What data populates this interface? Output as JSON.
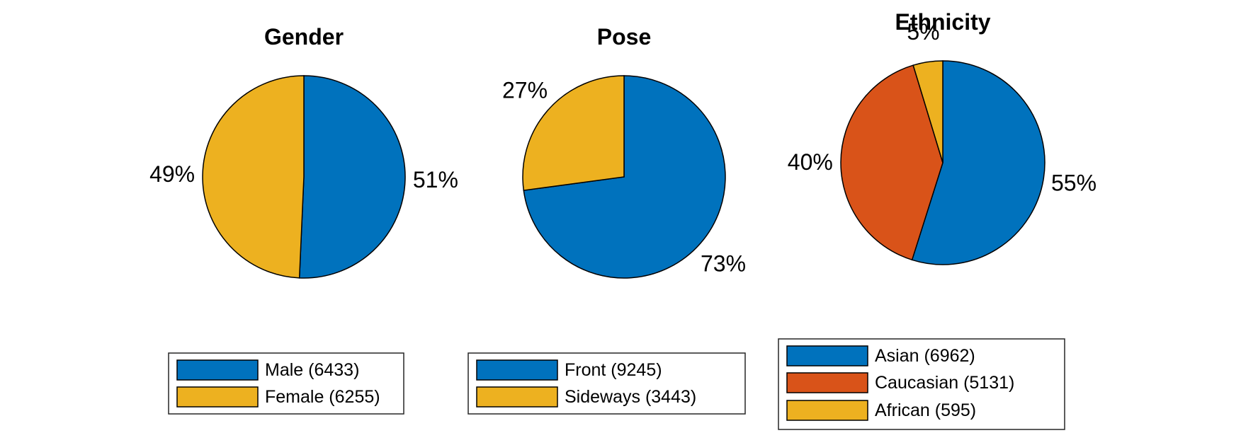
{
  "chart_data": [
    {
      "type": "pie",
      "title": "Gender",
      "categories": [
        "Male",
        "Female"
      ],
      "values": [
        6433,
        6255
      ],
      "percent_labels": [
        "51%",
        "49%"
      ],
      "legend_labels": [
        "Male (6433)",
        "Female (6255)"
      ],
      "colors": [
        "#0072BD",
        "#EDB120"
      ],
      "legend_placement": "below"
    },
    {
      "type": "pie",
      "title": "Pose",
      "categories": [
        "Front",
        "Sideways"
      ],
      "values": [
        9245,
        3443
      ],
      "percent_labels": [
        "73%",
        "27%"
      ],
      "legend_labels": [
        "Front (9245)",
        "Sideways (3443)"
      ],
      "colors": [
        "#0072BD",
        "#EDB120"
      ],
      "legend_placement": "below"
    },
    {
      "type": "pie",
      "title": "Ethnicity",
      "categories": [
        "Asian",
        "Caucasian",
        "African"
      ],
      "values": [
        6962,
        5131,
        595
      ],
      "percent_labels": [
        "55%",
        "40%",
        "5%"
      ],
      "legend_labels": [
        "Asian (6962)",
        "Caucasian (5131)",
        "African (595)"
      ],
      "colors": [
        "#0072BD",
        "#D95319",
        "#EDB120"
      ],
      "legend_placement": "below"
    }
  ]
}
